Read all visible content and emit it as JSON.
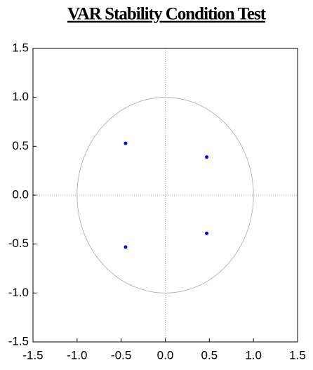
{
  "chart_data": {
    "type": "scatter",
    "title": "VAR Stability Condition Test",
    "x": [
      -0.45,
      0.47,
      0.47,
      -0.45
    ],
    "values": [
      0.53,
      0.39,
      -0.39,
      -0.53
    ],
    "color": "#0000ff",
    "xlim": [
      -1.5,
      1.5
    ],
    "ylim": [
      -1.5,
      1.5
    ],
    "xticks": [
      -1.5,
      {
        "value": -1,
        "label": "-1.0"
      },
      -0.5,
      {
        "value": 0,
        "label": "0.0"
      },
      0.5,
      {
        "value": 1,
        "label": "1.0"
      },
      1.5
    ],
    "yticks": [
      1.5,
      {
        "value": 1,
        "label": "1.0"
      },
      0.5,
      {
        "value": 0,
        "label": "0.0"
      },
      -0.5,
      {
        "value": -1,
        "label": "-1.0"
      },
      -1.5
    ],
    "reference_lines": true
  }
}
